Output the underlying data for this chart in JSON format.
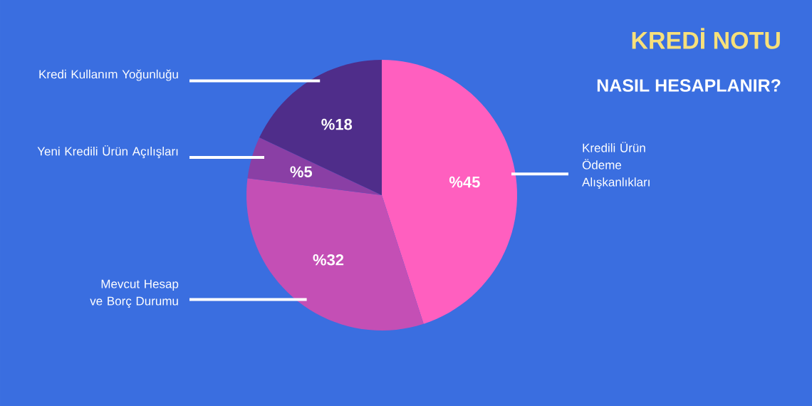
{
  "chart_data": {
    "type": "pie",
    "title": "KREDİ NOTU",
    "subtitle": "NASIL HESAPLANIR?",
    "categories": [
      "Kredili Ürün Ödeme Alışkanlıkları",
      "Mevcut Hesap ve Borç Durumu",
      "Yeni Kredili Ürün Açılışları",
      "Kredi Kullanım Yoğunluğu"
    ],
    "values": [
      45,
      32,
      5,
      18
    ],
    "colors": [
      "#ff5fbf",
      "#c44fb5",
      "#8a3fa5",
      "#4f2d8a"
    ],
    "value_labels": [
      "%45",
      "%32",
      "%5",
      "%18"
    ]
  }
}
